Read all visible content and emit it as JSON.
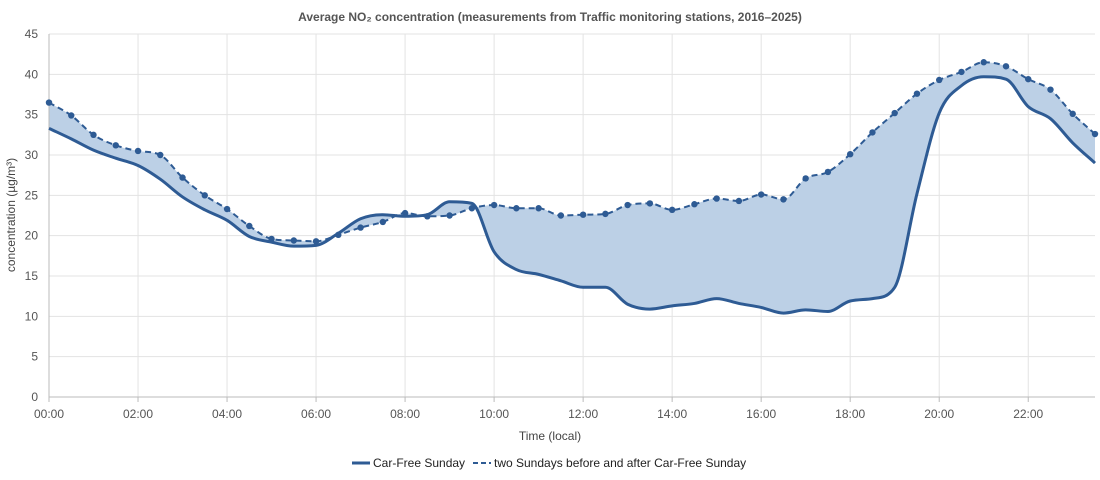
{
  "chart_data": {
    "type": "line",
    "title": "Average NO₂ concentration (measurements from Traffic monitoring stations, 2016–2025)",
    "xlabel": "Time (local)",
    "ylabel": "concentration (µg/m³)",
    "ylim": [
      0,
      45
    ],
    "yticks": [
      0,
      5,
      10,
      15,
      20,
      25,
      30,
      35,
      40,
      45
    ],
    "xlim": [
      "00:00",
      "23:30"
    ],
    "xticks": [
      "00:00",
      "02:00",
      "04:00",
      "06:00",
      "08:00",
      "10:00",
      "12:00",
      "14:00",
      "16:00",
      "18:00",
      "20:00",
      "22:00"
    ],
    "grid": true,
    "legend_position": "bottom",
    "fill_between_series": true,
    "colors": {
      "line": "#2e5b94",
      "fill": "#bcd0e6",
      "grid": "#e3e3e3",
      "axis": "#bbbbbb"
    },
    "x": [
      "00:00",
      "00:30",
      "01:00",
      "01:30",
      "02:00",
      "02:30",
      "03:00",
      "03:30",
      "04:00",
      "04:30",
      "05:00",
      "05:30",
      "06:00",
      "06:30",
      "07:00",
      "07:30",
      "08:00",
      "08:30",
      "09:00",
      "09:30",
      "10:00",
      "10:30",
      "11:00",
      "11:30",
      "12:00",
      "12:30",
      "13:00",
      "13:30",
      "14:00",
      "14:30",
      "15:00",
      "15:30",
      "16:00",
      "16:30",
      "17:00",
      "17:30",
      "18:00",
      "18:30",
      "19:00",
      "19:30",
      "20:00",
      "20:30",
      "21:00",
      "21:30",
      "22:00",
      "22:30",
      "23:00",
      "23:30"
    ],
    "series": [
      {
        "name": "Car-Free Sunday",
        "style": "solid",
        "markers": false,
        "values": [
          33.3,
          32.0,
          30.6,
          29.6,
          28.7,
          27.0,
          24.8,
          23.2,
          21.9,
          19.9,
          19.2,
          18.7,
          18.8,
          20.3,
          22.1,
          22.6,
          22.4,
          22.6,
          24.2,
          24.0,
          18.0,
          15.8,
          15.2,
          14.4,
          13.6,
          13.6,
          11.5,
          10.9,
          11.3,
          11.6,
          12.2,
          11.6,
          11.1,
          10.4,
          10.8,
          10.6,
          11.9,
          12.2,
          13.6,
          25.2,
          35.2,
          38.6,
          39.7,
          39.4,
          36.0,
          34.5,
          31.5,
          29.0
        ]
      },
      {
        "name": "two Sundays before and after Car-Free Sunday",
        "style": "dashed",
        "markers": true,
        "values": [
          36.5,
          34.9,
          32.5,
          31.2,
          30.5,
          30.0,
          27.2,
          25.0,
          23.3,
          21.2,
          19.6,
          19.4,
          19.3,
          20.1,
          21.0,
          21.7,
          22.8,
          22.4,
          22.5,
          23.4,
          23.8,
          23.4,
          23.4,
          22.5,
          22.6,
          22.7,
          23.8,
          24.0,
          23.2,
          23.9,
          24.6,
          24.3,
          25.1,
          24.5,
          27.1,
          27.9,
          30.1,
          32.8,
          35.2,
          37.6,
          39.3,
          40.3,
          41.5,
          41.0,
          39.4,
          38.1,
          35.1,
          32.6
        ]
      }
    ]
  }
}
